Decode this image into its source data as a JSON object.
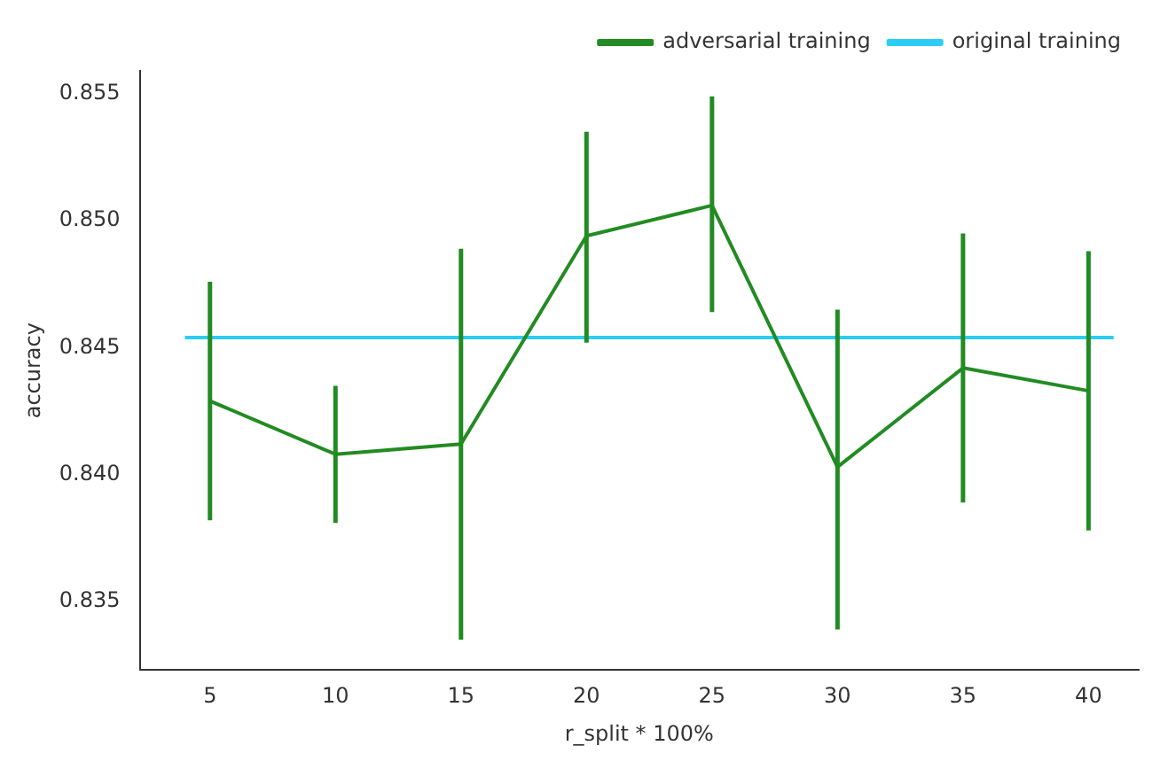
{
  "chart_data": {
    "type": "line",
    "xlabel": "r_split * 100%",
    "ylabel": "accuracy",
    "x": [
      5,
      10,
      15,
      20,
      25,
      30,
      35,
      40
    ],
    "series": [
      {
        "name": "adversarial training",
        "color": "#228b22",
        "values": [
          0.8429,
          0.8408,
          0.8412,
          0.8494,
          0.8506,
          0.8403,
          0.8442,
          0.8433
        ],
        "errors": [
          [
            0.8382,
            0.8476
          ],
          [
            0.8381,
            0.8435
          ],
          [
            0.8335,
            0.8489
          ],
          [
            0.8452,
            0.8535
          ],
          [
            0.8464,
            0.8549
          ],
          [
            0.8339,
            0.8465
          ],
          [
            0.8389,
            0.8495
          ],
          [
            0.8378,
            0.8488
          ]
        ]
      },
      {
        "name": "original training",
        "color": "#2ccdf5",
        "x": [
          4,
          41
        ],
        "values": [
          0.8454,
          0.8454
        ]
      }
    ],
    "xlim": [
      2.2,
      42
    ],
    "xticks": [
      5,
      10,
      15,
      20,
      25,
      30,
      35,
      40
    ],
    "ylim": [
      0.8323,
      0.8559
    ],
    "yticks": [
      0.835,
      {
        "value": 0.84,
        "label": "0.840"
      },
      0.845,
      {
        "value": 0.85,
        "label": "0.850"
      },
      0.855
    ],
    "grid": false,
    "legend": "top right",
    "marker": "none",
    "line_style": "solid"
  }
}
